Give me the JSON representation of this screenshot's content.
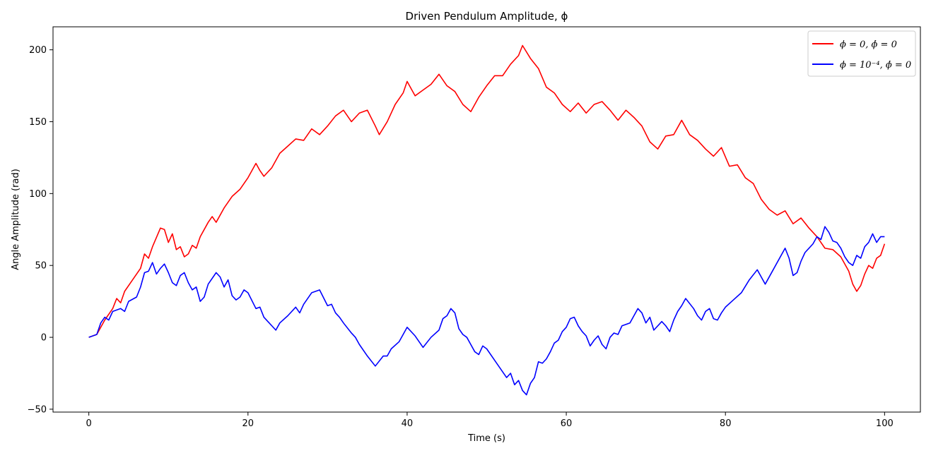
{
  "chart_data": {
    "type": "line",
    "title": "Driven Pendulum Amplitude, ϕ",
    "xlabel": "Time (s)",
    "ylabel": "Angle Amplitude (rad)",
    "xlim": [
      -4.5,
      104.5
    ],
    "ylim": [
      -52,
      216
    ],
    "x_ticks": [
      0,
      20,
      40,
      60,
      80,
      100
    ],
    "y_ticks": [
      -50,
      0,
      50,
      100,
      150,
      200
    ],
    "x_tick_labels": [
      "0",
      "20",
      "40",
      "60",
      "80",
      "100"
    ],
    "y_tick_labels": [
      "−50",
      "0",
      "50",
      "100",
      "150",
      "200"
    ],
    "grid": false,
    "legend_position": "top-right",
    "series": [
      {
        "name": "ϕ = 0, ϕ̇ = 0",
        "color": "#ff0000",
        "points": [
          [
            0,
            0
          ],
          [
            1,
            2
          ],
          [
            2,
            12
          ],
          [
            3,
            20
          ],
          [
            3.5,
            27
          ],
          [
            4,
            24
          ],
          [
            4.5,
            32
          ],
          [
            5.5,
            40
          ],
          [
            6.5,
            48
          ],
          [
            7,
            58
          ],
          [
            7.5,
            55
          ],
          [
            8,
            63
          ],
          [
            9,
            76
          ],
          [
            9.5,
            75
          ],
          [
            10,
            66
          ],
          [
            10.5,
            72
          ],
          [
            11,
            61
          ],
          [
            11.5,
            63
          ],
          [
            12,
            56
          ],
          [
            12.5,
            58
          ],
          [
            13,
            64
          ],
          [
            13.5,
            62
          ],
          [
            14,
            70
          ],
          [
            15,
            80
          ],
          [
            15.5,
            84
          ],
          [
            16,
            80
          ],
          [
            17,
            90
          ],
          [
            18,
            98
          ],
          [
            19,
            103
          ],
          [
            20,
            111
          ],
          [
            21,
            121
          ],
          [
            21.5,
            116
          ],
          [
            22,
            112
          ],
          [
            23,
            118
          ],
          [
            24,
            128
          ],
          [
            25,
            133
          ],
          [
            26,
            138
          ],
          [
            27,
            137
          ],
          [
            28,
            145
          ],
          [
            29,
            141
          ],
          [
            30,
            147
          ],
          [
            31,
            154
          ],
          [
            32,
            158
          ],
          [
            33,
            150
          ],
          [
            34,
            156
          ],
          [
            35,
            158
          ],
          [
            36,
            147
          ],
          [
            36.5,
            141
          ],
          [
            37.5,
            150
          ],
          [
            38.5,
            162
          ],
          [
            39.5,
            170
          ],
          [
            40,
            178
          ],
          [
            41,
            168
          ],
          [
            42,
            172
          ],
          [
            43,
            176
          ],
          [
            44,
            183
          ],
          [
            45,
            175
          ],
          [
            46,
            171
          ],
          [
            47,
            162
          ],
          [
            48,
            157
          ],
          [
            49,
            167
          ],
          [
            50,
            175
          ],
          [
            51,
            182
          ],
          [
            52,
            182
          ],
          [
            53,
            190
          ],
          [
            54,
            196
          ],
          [
            54.5,
            203
          ],
          [
            55.5,
            194
          ],
          [
            56.5,
            187
          ],
          [
            57.5,
            174
          ],
          [
            58.5,
            170
          ],
          [
            59.5,
            162
          ],
          [
            60.5,
            157
          ],
          [
            61.5,
            163
          ],
          [
            62.5,
            156
          ],
          [
            63.5,
            162
          ],
          [
            64.5,
            164
          ],
          [
            65.5,
            158
          ],
          [
            66.5,
            151
          ],
          [
            67.5,
            158
          ],
          [
            68.5,
            153
          ],
          [
            69.5,
            147
          ],
          [
            70.5,
            136
          ],
          [
            71.5,
            131
          ],
          [
            72.5,
            140
          ],
          [
            73.5,
            141
          ],
          [
            74.5,
            151
          ],
          [
            75.5,
            141
          ],
          [
            76.5,
            137
          ],
          [
            77.5,
            131
          ],
          [
            78.5,
            126
          ],
          [
            79.5,
            132
          ],
          [
            80.5,
            119
          ],
          [
            81.5,
            120
          ],
          [
            82.5,
            111
          ],
          [
            83.5,
            107
          ],
          [
            84.5,
            96
          ],
          [
            85.5,
            89
          ],
          [
            86.5,
            85
          ],
          [
            87.5,
            88
          ],
          [
            88.5,
            79
          ],
          [
            89.5,
            83
          ],
          [
            90.5,
            76
          ],
          [
            91.5,
            70
          ],
          [
            92.5,
            62
          ],
          [
            93.5,
            61
          ],
          [
            94.5,
            56
          ],
          [
            95.5,
            46
          ],
          [
            96,
            37
          ],
          [
            96.5,
            32
          ],
          [
            97,
            36
          ],
          [
            97.5,
            44
          ],
          [
            98,
            50
          ],
          [
            98.5,
            48
          ],
          [
            99,
            55
          ],
          [
            99.5,
            57
          ],
          [
            100,
            65
          ]
        ]
      },
      {
        "name": "ϕ = 10⁻⁴, ϕ̇ = 0",
        "color": "#0000ff",
        "points": [
          [
            0,
            0
          ],
          [
            1,
            2
          ],
          [
            1.5,
            10
          ],
          [
            2,
            14
          ],
          [
            2.5,
            12
          ],
          [
            3,
            18
          ],
          [
            4,
            20
          ],
          [
            4.5,
            18
          ],
          [
            5,
            25
          ],
          [
            6,
            28
          ],
          [
            6.5,
            35
          ],
          [
            7,
            45
          ],
          [
            7.5,
            46
          ],
          [
            8,
            52
          ],
          [
            8.5,
            44
          ],
          [
            9,
            48
          ],
          [
            9.5,
            51
          ],
          [
            10,
            45
          ],
          [
            10.5,
            38
          ],
          [
            11,
            36
          ],
          [
            11.5,
            43
          ],
          [
            12,
            45
          ],
          [
            12.5,
            38
          ],
          [
            13,
            33
          ],
          [
            13.5,
            35
          ],
          [
            14,
            25
          ],
          [
            14.5,
            28
          ],
          [
            15,
            37
          ],
          [
            16,
            45
          ],
          [
            16.5,
            42
          ],
          [
            17,
            35
          ],
          [
            17.5,
            40
          ],
          [
            18,
            29
          ],
          [
            18.5,
            26
          ],
          [
            19,
            28
          ],
          [
            19.5,
            33
          ],
          [
            20,
            31
          ],
          [
            21,
            20
          ],
          [
            21.5,
            21
          ],
          [
            22,
            14
          ],
          [
            22.5,
            11
          ],
          [
            23,
            8
          ],
          [
            23.5,
            5
          ],
          [
            24,
            10
          ],
          [
            25,
            15
          ],
          [
            26,
            21
          ],
          [
            26.5,
            17
          ],
          [
            27,
            23
          ],
          [
            27.5,
            27
          ],
          [
            28,
            31
          ],
          [
            29,
            33
          ],
          [
            30,
            22
          ],
          [
            30.5,
            23
          ],
          [
            31,
            17
          ],
          [
            31.5,
            14
          ],
          [
            32,
            10
          ],
          [
            33,
            3
          ],
          [
            33.5,
            0
          ],
          [
            34,
            -5
          ],
          [
            35,
            -13
          ],
          [
            36,
            -20
          ],
          [
            37,
            -13
          ],
          [
            37.5,
            -13
          ],
          [
            38,
            -8
          ],
          [
            39,
            -3
          ],
          [
            39.5,
            2
          ],
          [
            40,
            7
          ],
          [
            41,
            1
          ],
          [
            41.5,
            -3
          ],
          [
            42,
            -7
          ],
          [
            43,
            0
          ],
          [
            44,
            5
          ],
          [
            44.5,
            13
          ],
          [
            45,
            15
          ],
          [
            45.5,
            20
          ],
          [
            46,
            17
          ],
          [
            46.5,
            6
          ],
          [
            47,
            2
          ],
          [
            47.5,
            0
          ],
          [
            48,
            -5
          ],
          [
            48.5,
            -10
          ],
          [
            49,
            -12
          ],
          [
            49.5,
            -6
          ],
          [
            50,
            -8
          ],
          [
            51,
            -16
          ],
          [
            52,
            -24
          ],
          [
            52.5,
            -28
          ],
          [
            53,
            -25
          ],
          [
            53.5,
            -33
          ],
          [
            54,
            -30
          ],
          [
            54.5,
            -37
          ],
          [
            55,
            -40
          ],
          [
            55.5,
            -32
          ],
          [
            56,
            -28
          ],
          [
            56.5,
            -17
          ],
          [
            57,
            -18
          ],
          [
            57.5,
            -15
          ],
          [
            58,
            -10
          ],
          [
            58.5,
            -4
          ],
          [
            59,
            -2
          ],
          [
            59.5,
            4
          ],
          [
            60,
            7
          ],
          [
            60.5,
            13
          ],
          [
            61,
            14
          ],
          [
            61.5,
            8
          ],
          [
            62,
            4
          ],
          [
            62.5,
            1
          ],
          [
            63,
            -6
          ],
          [
            63.5,
            -2
          ],
          [
            64,
            1
          ],
          [
            64.5,
            -5
          ],
          [
            65,
            -8
          ],
          [
            65.5,
            0
          ],
          [
            66,
            3
          ],
          [
            66.5,
            2
          ],
          [
            67,
            8
          ],
          [
            68,
            10
          ],
          [
            68.5,
            15
          ],
          [
            69,
            20
          ],
          [
            69.5,
            17
          ],
          [
            70,
            10
          ],
          [
            70.5,
            14
          ],
          [
            71,
            5
          ],
          [
            72,
            11
          ],
          [
            72.5,
            8
          ],
          [
            73,
            4
          ],
          [
            73.5,
            12
          ],
          [
            74,
            18
          ],
          [
            74.5,
            22
          ],
          [
            75,
            27
          ],
          [
            76,
            20
          ],
          [
            76.5,
            15
          ],
          [
            77,
            12
          ],
          [
            77.5,
            18
          ],
          [
            78,
            20
          ],
          [
            78.5,
            13
          ],
          [
            79,
            12
          ],
          [
            79.5,
            17
          ],
          [
            80,
            21
          ],
          [
            81,
            26
          ],
          [
            82,
            31
          ],
          [
            83,
            40
          ],
          [
            84,
            47
          ],
          [
            84.5,
            42
          ],
          [
            85,
            37
          ],
          [
            86,
            47
          ],
          [
            87,
            57
          ],
          [
            87.5,
            62
          ],
          [
            88,
            55
          ],
          [
            88.5,
            43
          ],
          [
            89,
            45
          ],
          [
            89.5,
            53
          ],
          [
            90,
            59
          ],
          [
            91,
            65
          ],
          [
            91.5,
            70
          ],
          [
            92,
            68
          ],
          [
            92.5,
            77
          ],
          [
            93,
            73
          ],
          [
            93.5,
            67
          ],
          [
            94,
            66
          ],
          [
            94.5,
            62
          ],
          [
            95,
            56
          ],
          [
            95.5,
            52
          ],
          [
            96,
            50
          ],
          [
            96.5,
            57
          ],
          [
            97,
            55
          ],
          [
            97.5,
            63
          ],
          [
            98,
            66
          ],
          [
            98.5,
            72
          ],
          [
            99,
            66
          ],
          [
            99.5,
            70
          ],
          [
            100,
            70
          ]
        ]
      }
    ]
  }
}
